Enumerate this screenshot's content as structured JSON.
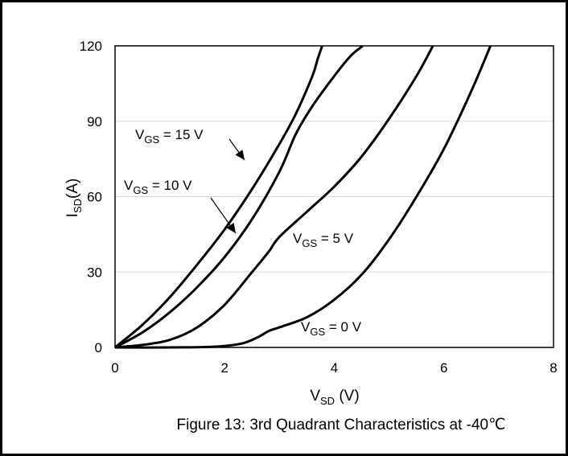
{
  "caption": "Figure 13: 3rd Quadrant Characteristics at  -40℃",
  "chart_data": {
    "type": "line",
    "title": "",
    "xlabel": {
      "main": "V",
      "sub": "SD",
      "suffix": " (V)"
    },
    "ylabel": {
      "main": "I",
      "sub": "SD",
      "suffix": "(A)"
    },
    "xlim": [
      0,
      8
    ],
    "ylim": [
      0,
      120
    ],
    "xticks": [
      0,
      2,
      4,
      6,
      8
    ],
    "yticks": [
      0,
      30,
      60,
      90,
      120
    ],
    "grid": "horizontal",
    "legend": "none",
    "colors": {
      "series": "#000000",
      "grid": "#d9d9d9"
    },
    "series": [
      {
        "annotation": {
          "main": "V",
          "sub": "GS",
          "suffix": " = 15 V"
        },
        "points": [
          [
            0,
            0
          ],
          [
            0.5,
            9
          ],
          [
            1,
            20
          ],
          [
            1.5,
            33
          ],
          [
            2,
            47
          ],
          [
            2.5,
            63
          ],
          [
            3,
            81
          ],
          [
            3.3,
            93
          ],
          [
            3.6,
            108
          ],
          [
            3.7,
            115
          ],
          [
            3.78,
            120
          ]
        ]
      },
      {
        "annotation": {
          "main": "V",
          "sub": "GS",
          "suffix": " = 10 V"
        },
        "points": [
          [
            0,
            0
          ],
          [
            0.5,
            6
          ],
          [
            1,
            14
          ],
          [
            1.5,
            24
          ],
          [
            2,
            36
          ],
          [
            2.5,
            51
          ],
          [
            3,
            70
          ],
          [
            3.3,
            85
          ],
          [
            3.6,
            96
          ],
          [
            4,
            108
          ],
          [
            4.3,
            116
          ],
          [
            4.52,
            120
          ]
        ]
      },
      {
        "annotation": {
          "main": "V",
          "sub": "GS",
          "suffix": " = 5 V"
        },
        "points": [
          [
            0,
            0
          ],
          [
            0.5,
            1
          ],
          [
            1,
            3
          ],
          [
            1.5,
            8
          ],
          [
            2,
            17
          ],
          [
            2.5,
            30
          ],
          [
            2.8,
            38
          ],
          [
            3,
            44
          ],
          [
            3.5,
            54
          ],
          [
            4,
            64
          ],
          [
            4.5,
            76
          ],
          [
            5,
            91
          ],
          [
            5.5,
            108
          ],
          [
            5.8,
            120
          ]
        ]
      },
      {
        "annotation": {
          "main": "V",
          "sub": "GS",
          "suffix": " = 0 V"
        },
        "points": [
          [
            0,
            0
          ],
          [
            1,
            0
          ],
          [
            1.8,
            0.3
          ],
          [
            2.3,
            1.5
          ],
          [
            2.6,
            4
          ],
          [
            2.8,
            6.5
          ],
          [
            3,
            8
          ],
          [
            3.5,
            12
          ],
          [
            4,
            19
          ],
          [
            4.5,
            29
          ],
          [
            5,
            43
          ],
          [
            5.5,
            60
          ],
          [
            6,
            79
          ],
          [
            6.5,
            102
          ],
          [
            6.85,
            120
          ]
        ]
      }
    ]
  }
}
